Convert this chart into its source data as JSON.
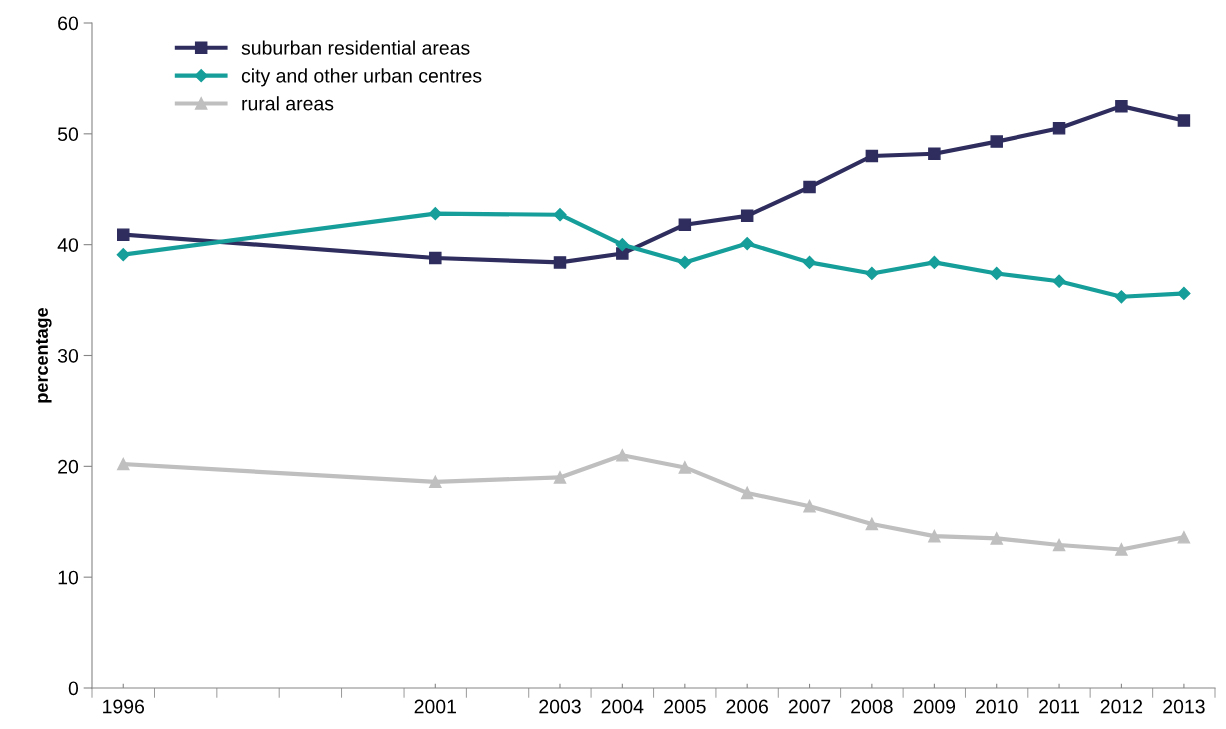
{
  "chart_data": {
    "type": "line",
    "ylabel": "percentage",
    "x": [
      "1996",
      "2001",
      "2003",
      "2004",
      "2005",
      "2006",
      "2007",
      "2008",
      "2009",
      "2010",
      "2011",
      "2012",
      "2013"
    ],
    "series": [
      {
        "name": "suburban residential areas",
        "color": "#2e2d5e",
        "marker": "square",
        "values": [
          40.9,
          38.8,
          38.4,
          39.2,
          41.8,
          42.6,
          45.2,
          48.0,
          48.2,
          49.3,
          50.5,
          52.5,
          51.2
        ]
      },
      {
        "name": "city and other urban centres",
        "color": "#169e9a",
        "marker": "diamond",
        "values": [
          39.1,
          42.8,
          42.7,
          40.0,
          38.4,
          40.1,
          38.4,
          37.4,
          38.4,
          37.4,
          36.7,
          35.3,
          35.6
        ]
      },
      {
        "name": "rural areas",
        "color": "#bfbfbf",
        "marker": "triangle",
        "values": [
          20.2,
          18.6,
          19.0,
          21.0,
          19.9,
          17.6,
          16.4,
          14.8,
          13.7,
          13.5,
          12.9,
          12.5,
          13.6
        ]
      }
    ],
    "xlim": [
      "1995-07-02",
      "2013-07-02"
    ],
    "xticks": [
      {
        "value": "1995-07-02",
        "label": null
      },
      {
        "value": "1996-07-02",
        "label": null
      },
      {
        "value": "1997-07-02",
        "label": null
      },
      {
        "value": "1998-07-02",
        "label": null
      },
      {
        "value": "1999-07-02",
        "label": null
      },
      {
        "value": "2000-07-02",
        "label": null
      },
      {
        "value": "2001-07-02",
        "label": null
      },
      {
        "value": "2002-07-02",
        "label": null
      },
      {
        "value": "2003-07-02",
        "label": null
      },
      {
        "value": "2004-07-02",
        "label": null
      },
      {
        "value": "2005-07-02",
        "label": null
      },
      {
        "value": "2006-07-02",
        "label": null
      },
      {
        "value": "2007-07-02",
        "label": null
      },
      {
        "value": "2008-07-02",
        "label": null
      },
      {
        "value": "2009-07-02",
        "label": null
      },
      {
        "value": "2010-07-02",
        "label": null
      },
      {
        "value": "2011-07-02",
        "label": null
      },
      {
        "value": "2012-07-02",
        "label": null
      },
      {
        "value": "2013-07-02",
        "label": null
      },
      "1996",
      "2001",
      "2003",
      "2004",
      "2005",
      "2006",
      "2007",
      "2008",
      "2009",
      "2010",
      "2011",
      "2012",
      "2013"
    ],
    "ylim": [
      0,
      60
    ],
    "yticks": [
      0,
      10,
      20,
      30,
      40,
      50,
      60
    ],
    "grid": false,
    "legend": "top left",
    "line_style": "solid"
  }
}
